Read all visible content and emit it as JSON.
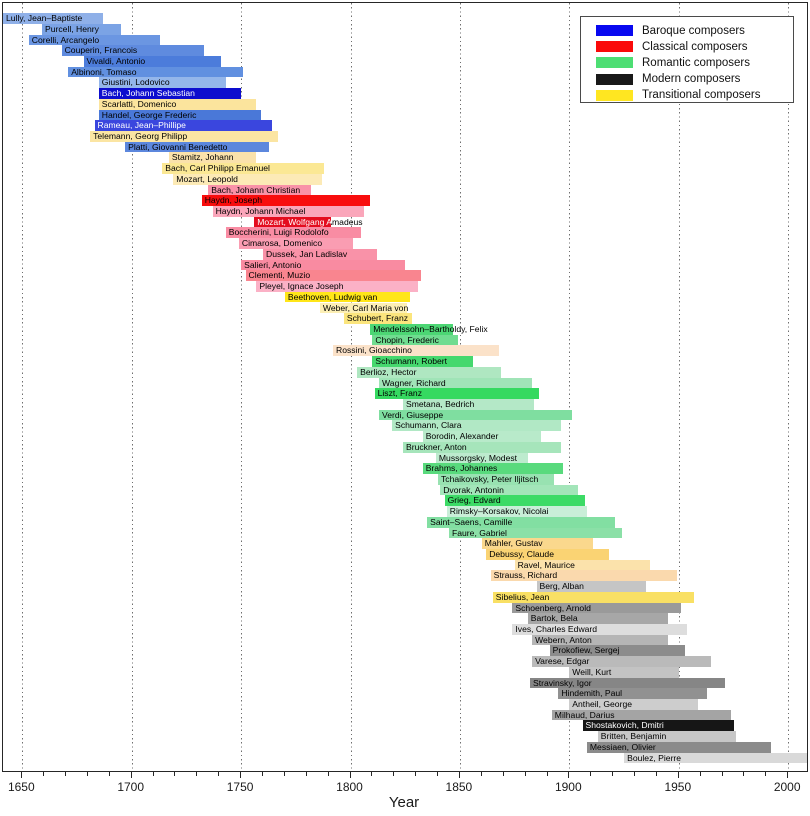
{
  "chart_data": {
    "type": "bar",
    "orientation": "horizontal-span-timeline",
    "title": "",
    "xlabel": "Year",
    "ylabel": "",
    "xlim": [
      1641.2,
      2008.6
    ],
    "xticks": [
      1650,
      1700,
      1750,
      1800,
      1850,
      1900,
      1950,
      2000
    ],
    "minor_tick_step": 10,
    "grid": "vertical dotted at major ticks",
    "legend_position": "top-right inside plot",
    "legend": [
      {
        "label": "Baroque composers",
        "color": "#0808F0"
      },
      {
        "label": "Classical composers",
        "color": "#FA0A0A"
      },
      {
        "label": "Romantic composers",
        "color": "#4DDE73"
      },
      {
        "label": "Modern composers",
        "color": "#191919"
      },
      {
        "label": "Transitional composers",
        "color": "#FFE621"
      }
    ],
    "composers": [
      {
        "name": "Lully, Jean–Baptiste",
        "from": 1632,
        "to": 1687,
        "era": "Baroque",
        "color": "#8FB0E8"
      },
      {
        "name": "Purcell, Henry",
        "from": 1659,
        "to": 1695,
        "era": "Baroque",
        "color": "#7BA3E5"
      },
      {
        "name": "Corelli, Arcangelo",
        "from": 1653,
        "to": 1713,
        "era": "Baroque",
        "color": "#6B96E2"
      },
      {
        "name": "Couperin, Francois",
        "from": 1668,
        "to": 1733,
        "era": "Baroque",
        "color": "#5F8BDF"
      },
      {
        "name": "Vivaldi, Antonio",
        "from": 1678,
        "to": 1741,
        "era": "Baroque",
        "color": "#4C7CDB"
      },
      {
        "name": "Albinoni, Tomaso",
        "from": 1671,
        "to": 1751,
        "era": "Baroque",
        "color": "#6190E0"
      },
      {
        "name": "Giustini, Lodovico",
        "from": 1685,
        "to": 1743,
        "era": "Baroque",
        "color": "#94B6EA"
      },
      {
        "name": "Bach, Johann Sebastian",
        "from": 1685,
        "to": 1750,
        "era": "Baroque",
        "color": "#0D0DCE",
        "text_color": "#FFFFFF"
      },
      {
        "name": "Scarlatti, Domenico",
        "from": 1685,
        "to": 1757,
        "era": "Transitional",
        "color": "#FBE49D"
      },
      {
        "name": "Handel, George Frederic",
        "from": 1685,
        "to": 1759,
        "era": "Baroque",
        "color": "#4A78D8"
      },
      {
        "name": "Rameau, Jean–Phillipe",
        "from": 1683,
        "to": 1764,
        "era": "Baroque",
        "color": "#3A46DE",
        "text_color": "#FFFFFF"
      },
      {
        "name": "Telemann, Georg Philipp",
        "from": 1681,
        "to": 1767,
        "era": "Transitional",
        "color": "#FBE5A3"
      },
      {
        "name": "Platti, Giovanni Benedetto",
        "from": 1697,
        "to": 1763,
        "era": "Baroque",
        "color": "#5C87DD"
      },
      {
        "name": "Stamitz, Johann",
        "from": 1717,
        "to": 1757,
        "era": "Transitional",
        "color": "#FAE2AB"
      },
      {
        "name": "Bach, Carl Philipp Emanuel",
        "from": 1714,
        "to": 1788,
        "era": "Transitional",
        "color": "#FBE894"
      },
      {
        "name": "Mozart, Leopold",
        "from": 1719,
        "to": 1787,
        "era": "Transitional",
        "color": "#FCEAB6"
      },
      {
        "name": "Bach, Johann Christian",
        "from": 1735,
        "to": 1782,
        "era": "Classical",
        "color": "#F992A8"
      },
      {
        "name": "Haydn, Joseph",
        "from": 1732,
        "to": 1809,
        "era": "Classical",
        "color": "#F80D0D"
      },
      {
        "name": "Haydn, Johann Michael",
        "from": 1737,
        "to": 1806,
        "era": "Classical",
        "color": "#FAA6BA"
      },
      {
        "name": "Mozart, Wolfgang Amadeus",
        "from": 1756,
        "to": 1791,
        "era": "Classical",
        "color": "#E40D1F",
        "text_color": "#FFFFFF"
      },
      {
        "name": "Boccherini, Luigi Rodolofo",
        "from": 1743,
        "to": 1805,
        "era": "Classical",
        "color": "#F98CA3"
      },
      {
        "name": "Cimarosa, Domenico",
        "from": 1749,
        "to": 1801,
        "era": "Classical",
        "color": "#FA9DB2"
      },
      {
        "name": "Dussek, Jan Ladislav",
        "from": 1760,
        "to": 1812,
        "era": "Classical",
        "color": "#F992A8"
      },
      {
        "name": "Salieri, Antonio",
        "from": 1750,
        "to": 1825,
        "era": "Classical",
        "color": "#F98BA1"
      },
      {
        "name": "Clementi, Muzio",
        "from": 1752,
        "to": 1832,
        "era": "Classical",
        "color": "#F9858F"
      },
      {
        "name": "Pleyel, Ignace Joseph",
        "from": 1757,
        "to": 1831,
        "era": "Classical",
        "color": "#FBB1C6"
      },
      {
        "name": "Beethoven, Ludwig van",
        "from": 1770,
        "to": 1827,
        "era": "Transitional",
        "color": "#FFE619"
      },
      {
        "name": "Weber, Carl Maria von",
        "from": 1786,
        "to": 1826,
        "era": "Transitional",
        "color": "#FCEFB5"
      },
      {
        "name": "Schubert, Franz",
        "from": 1797,
        "to": 1828,
        "era": "Transitional",
        "color": "#FBE57D"
      },
      {
        "name": "Mendelssohn–Bartholdy, Felix",
        "from": 1809,
        "to": 1847,
        "era": "Romantic",
        "color": "#4CD674"
      },
      {
        "name": "Chopin, Frederic",
        "from": 1810,
        "to": 1849,
        "era": "Romantic",
        "color": "#70DC90"
      },
      {
        "name": "Rossini, Gioacchino",
        "from": 1792,
        "to": 1868,
        "era": "Transitional",
        "color": "#FBE2C9"
      },
      {
        "name": "Schumann, Robert",
        "from": 1810,
        "to": 1856,
        "era": "Romantic",
        "color": "#45D86E"
      },
      {
        "name": "Berlioz, Hector",
        "from": 1803,
        "to": 1869,
        "era": "Romantic",
        "color": "#AFE7C1"
      },
      {
        "name": "Wagner, Richard",
        "from": 1813,
        "to": 1883,
        "era": "Romantic",
        "color": "#A0E4B7"
      },
      {
        "name": "Liszt, Franz",
        "from": 1811,
        "to": 1886,
        "era": "Romantic",
        "color": "#35D960"
      },
      {
        "name": "Smetana, Bedrich",
        "from": 1824,
        "to": 1884,
        "era": "Romantic",
        "color": "#B4E8C7"
      },
      {
        "name": "Verdi, Giuseppe",
        "from": 1813,
        "to": 1901,
        "era": "Romantic",
        "color": "#7FDEA0"
      },
      {
        "name": "Schumann, Clara",
        "from": 1819,
        "to": 1896,
        "era": "Romantic",
        "color": "#B1E8C5"
      },
      {
        "name": "Borodin, Alexander",
        "from": 1833,
        "to": 1887,
        "era": "Romantic",
        "color": "#B8EACA"
      },
      {
        "name": "Bruckner, Anton",
        "from": 1824,
        "to": 1896,
        "era": "Romantic",
        "color": "#A6E5BB"
      },
      {
        "name": "Mussorgsky, Modest",
        "from": 1839,
        "to": 1881,
        "era": "Romantic",
        "color": "#BDEBCE"
      },
      {
        "name": "Brahms, Johannes",
        "from": 1833,
        "to": 1897,
        "era": "Romantic",
        "color": "#59DA7D"
      },
      {
        "name": "Tchaikovsky, Peter Iljitsch",
        "from": 1840,
        "to": 1893,
        "era": "Romantic",
        "color": "#98E2B1"
      },
      {
        "name": "Dvorak, Antonin",
        "from": 1841,
        "to": 1904,
        "era": "Romantic",
        "color": "#A3E5B9"
      },
      {
        "name": "Grieg, Edvard",
        "from": 1843,
        "to": 1907,
        "era": "Romantic",
        "color": "#3CDB66"
      },
      {
        "name": "Rimsky–Korsakov, Nicolai",
        "from": 1844,
        "to": 1908,
        "era": "Romantic",
        "color": "#C9EED8"
      },
      {
        "name": "Saint–Saens, Camille",
        "from": 1835,
        "to": 1921,
        "era": "Romantic",
        "color": "#82DFA2"
      },
      {
        "name": "Faure, Gabriel",
        "from": 1845,
        "to": 1924,
        "era": "Romantic",
        "color": "#8BE0A7"
      },
      {
        "name": "Mahler, Gustav",
        "from": 1860,
        "to": 1911,
        "era": "Transitional",
        "color": "#FAD88D"
      },
      {
        "name": "Debussy, Claude",
        "from": 1862,
        "to": 1918,
        "era": "Transitional",
        "color": "#FAD373"
      },
      {
        "name": "Ravel, Maurice",
        "from": 1875,
        "to": 1937,
        "era": "Transitional",
        "color": "#FBE2AB"
      },
      {
        "name": "Strauss, Richard",
        "from": 1864,
        "to": 1949,
        "era": "Transitional",
        "color": "#FAD9AD"
      },
      {
        "name": "Berg, Alban",
        "from": 1885,
        "to": 1935,
        "era": "Modern",
        "color": "#C5C5C5"
      },
      {
        "name": "Sibelius, Jean",
        "from": 1865,
        "to": 1957,
        "era": "Transitional",
        "color": "#F9E064"
      },
      {
        "name": "Schoenberg, Arnold",
        "from": 1874,
        "to": 1951,
        "era": "Modern",
        "color": "#9A9A9A"
      },
      {
        "name": "Bartok, Bela",
        "from": 1881,
        "to": 1945,
        "era": "Modern",
        "color": "#A7A7A7"
      },
      {
        "name": "Ives, Charles Edward",
        "from": 1874,
        "to": 1954,
        "era": "Modern",
        "color": "#DDDDDD"
      },
      {
        "name": "Webern, Anton",
        "from": 1883,
        "to": 1945,
        "era": "Modern",
        "color": "#B5B5B5"
      },
      {
        "name": "Prokofiew, Sergej",
        "from": 1891,
        "to": 1953,
        "era": "Modern",
        "color": "#8C8C8C"
      },
      {
        "name": "Varese, Edgar",
        "from": 1883,
        "to": 1965,
        "era": "Modern",
        "color": "#BABABA"
      },
      {
        "name": "Weill, Kurt",
        "from": 1900,
        "to": 1950,
        "era": "Modern",
        "color": "#C3C3C3"
      },
      {
        "name": "Stravinsky, Igor",
        "from": 1882,
        "to": 1971,
        "era": "Modern",
        "color": "#868686"
      },
      {
        "name": "Hindemith, Paul",
        "from": 1895,
        "to": 1963,
        "era": "Modern",
        "color": "#919191"
      },
      {
        "name": "Antheil, George",
        "from": 1900,
        "to": 1959,
        "era": "Modern",
        "color": "#CDCDCD"
      },
      {
        "name": "Milhaud, Darius",
        "from": 1892,
        "to": 1974,
        "era": "Modern",
        "color": "#A4A4A4"
      },
      {
        "name": "Shostakovich, Dmitri",
        "from": 1906,
        "to": 1975,
        "era": "Modern",
        "color": "#161616",
        "text_color": "#FFFFFF"
      },
      {
        "name": "Britten, Benjamin",
        "from": 1913,
        "to": 1976,
        "era": "Modern",
        "color": "#C7C7C7"
      },
      {
        "name": "Messiaen, Olivier",
        "from": 1908,
        "to": 1992,
        "era": "Modern",
        "color": "#8B8B8B"
      },
      {
        "name": "Boulez, Pierre",
        "from": 1925,
        "to": 2016,
        "era": "Modern",
        "color": "#D9D9D9"
      }
    ]
  }
}
